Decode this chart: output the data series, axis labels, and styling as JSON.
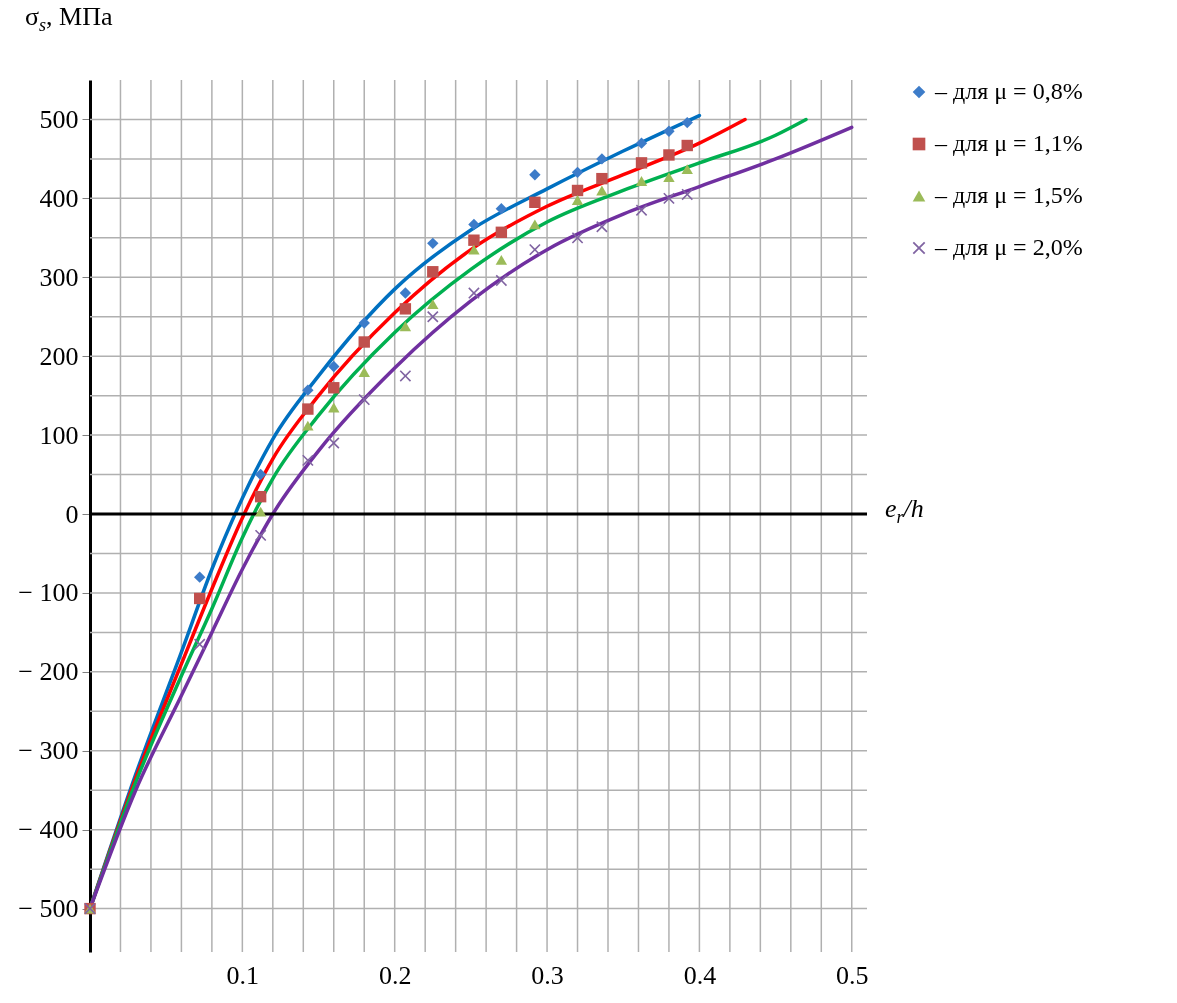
{
  "chart_data": {
    "type": "scatter",
    "xlabel": "e$_{r}$/h",
    "ylabel": "σ$_{s}$, МПа",
    "xlim": [
      0,
      0.51
    ],
    "ylim": [
      -555,
      550
    ],
    "xticks": [
      {
        "value": 0.02,
        "label": null
      },
      {
        "value": 0.04,
        "label": null
      },
      {
        "value": 0.06,
        "label": null
      },
      {
        "value": 0.08,
        "label": null
      },
      0.1,
      {
        "value": 0.12,
        "label": null
      },
      {
        "value": 0.14,
        "label": null
      },
      {
        "value": 0.16,
        "label": null
      },
      {
        "value": 0.18,
        "label": null
      },
      0.2,
      {
        "value": 0.22,
        "label": null
      },
      {
        "value": 0.24,
        "label": null
      },
      {
        "value": 0.26,
        "label": null
      },
      {
        "value": 0.28,
        "label": null
      },
      0.3,
      {
        "value": 0.32,
        "label": null
      },
      {
        "value": 0.34,
        "label": null
      },
      {
        "value": 0.36,
        "label": null
      },
      {
        "value": 0.38,
        "label": null
      },
      0.4,
      {
        "value": 0.42,
        "label": null
      },
      {
        "value": 0.44,
        "label": null
      },
      {
        "value": 0.46,
        "label": null
      },
      {
        "value": 0.48,
        "label": null
      },
      0.5
    ],
    "yticks": [
      {
        "value": -500,
        "label": "− 500"
      },
      {
        "value": -450,
        "label": null
      },
      {
        "value": -400,
        "label": "− 400"
      },
      {
        "value": -350,
        "label": null
      },
      {
        "value": -300,
        "label": "− 300"
      },
      {
        "value": -250,
        "label": null
      },
      {
        "value": -200,
        "label": "− 200"
      },
      {
        "value": -150,
        "label": null
      },
      {
        "value": -100,
        "label": "− 100"
      },
      {
        "value": -50,
        "label": null
      },
      0,
      {
        "value": 50,
        "label": null
      },
      100,
      {
        "value": 150,
        "label": null
      },
      200,
      {
        "value": 250,
        "label": null
      },
      300,
      {
        "value": 350,
        "label": null
      },
      400,
      {
        "value": 450,
        "label": null
      },
      500
    ],
    "grid": true,
    "legend": "right",
    "ref_lines": [
      {
        "axis": "y",
        "value": 0,
        "color": "#000000"
      }
    ],
    "x": [
      0,
      0.072,
      0.112,
      0.143,
      0.16,
      0.18,
      0.207,
      0.225,
      0.252,
      0.27,
      0.292,
      0.32,
      0.336,
      0.362,
      0.38,
      0.392
    ],
    "series": [
      {
        "name": "– для μ = 0,8%",
        "color": "#3d7cc9",
        "marker": "diamond",
        "values": [
          null,
          -80,
          50,
          157,
          187,
          242,
          280,
          343,
          367,
          387,
          430,
          433,
          450,
          470,
          485,
          496
        ]
      },
      {
        "name": "– для μ = 1,1%",
        "color": "#c0504d",
        "marker": "square",
        "values": [
          -500,
          -107,
          22,
          133,
          160,
          218,
          260,
          307,
          347,
          357,
          395,
          410,
          425,
          445,
          455,
          467
        ]
      },
      {
        "name": "– для μ = 1,5%",
        "color": "#9bbb59",
        "marker": "triangle",
        "values": [
          -500,
          null,
          3,
          112,
          135,
          180,
          238,
          266,
          335,
          322,
          367,
          398,
          410,
          422,
          427,
          437
        ]
      },
      {
        "name": "– для μ = 2,0%",
        "color": "#8064a2",
        "marker": "cross",
        "values": [
          -500,
          -165,
          -27,
          68,
          90,
          145,
          175,
          250,
          280,
          296,
          335,
          350,
          364,
          385,
          400,
          405
        ]
      },
      {
        "type": "line",
        "color": "#0070c0",
        "x": [
          0,
          0.03,
          0.06,
          0.08,
          0.1,
          0.12,
          0.15,
          0.2,
          0.25,
          0.3,
          0.35,
          0.4
        ],
        "values": [
          -500,
          -330,
          -175,
          -70,
          20,
          95,
          175,
          285,
          360,
          412,
          460,
          505
        ]
      },
      {
        "type": "line",
        "color": "#ff0000",
        "x": [
          0,
          0.03,
          0.06,
          0.08,
          0.1,
          0.12,
          0.15,
          0.2,
          0.25,
          0.3,
          0.35,
          0.4,
          0.43
        ],
        "values": [
          -500,
          -335,
          -190,
          -95,
          -5,
          70,
          150,
          255,
          335,
          390,
          430,
          470,
          500
        ]
      },
      {
        "type": "line",
        "color": "#00b050",
        "x": [
          0,
          0.03,
          0.06,
          0.08,
          0.1,
          0.12,
          0.15,
          0.2,
          0.25,
          0.3,
          0.35,
          0.4,
          0.45,
          0.47
        ],
        "values": [
          -500,
          -340,
          -205,
          -120,
          -30,
          45,
          125,
          230,
          310,
          370,
          410,
          445,
          480,
          500
        ]
      },
      {
        "type": "line",
        "color": "#7030a0",
        "x": [
          0,
          0.03,
          0.06,
          0.08,
          0.1,
          0.12,
          0.15,
          0.2,
          0.25,
          0.3,
          0.35,
          0.4,
          0.45,
          0.5
        ],
        "values": [
          -500,
          -350,
          -230,
          -150,
          -70,
          0,
          80,
          185,
          270,
          335,
          380,
          415,
          450,
          490
        ]
      }
    ]
  }
}
